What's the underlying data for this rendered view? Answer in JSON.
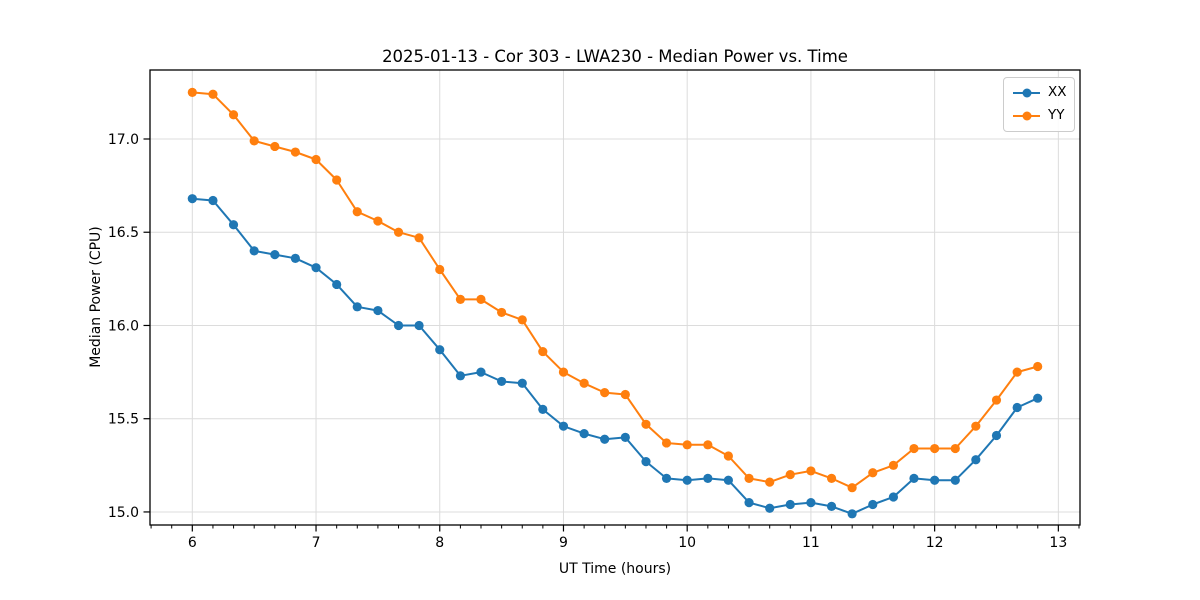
{
  "chart_data": {
    "type": "line",
    "title": "2025-01-13 - Cor 303 - LWA230 - Median Power vs. Time",
    "xlabel": "UT Time (hours)",
    "ylabel": "Median Power (CPU)",
    "xlim": [
      5.658,
      13.175
    ],
    "ylim": [
      14.93,
      17.37
    ],
    "xticks": [
      6,
      7,
      8,
      9,
      10,
      11,
      12,
      13
    ],
    "yticks": [
      15.0,
      15.5,
      16.0,
      16.5,
      17.0
    ],
    "x_minor_step": 0.16667,
    "grid": true,
    "grid_color": "#dcdcdc",
    "legend_position": "upper right",
    "x": [
      6.0,
      6.167,
      6.333,
      6.5,
      6.667,
      6.833,
      7.0,
      7.167,
      7.333,
      7.5,
      7.667,
      7.833,
      8.0,
      8.167,
      8.333,
      8.5,
      8.667,
      8.833,
      9.0,
      9.167,
      9.333,
      9.5,
      9.667,
      9.833,
      10.0,
      10.167,
      10.333,
      10.5,
      10.667,
      10.833,
      11.0,
      11.167,
      11.333,
      11.5,
      11.667,
      11.833,
      12.0,
      12.167,
      12.333,
      12.5,
      12.667,
      12.833
    ],
    "series": [
      {
        "name": "XX",
        "color": "#1f77b4",
        "values": [
          16.68,
          16.67,
          16.54,
          16.4,
          16.38,
          16.36,
          16.31,
          16.22,
          16.1,
          16.08,
          16.0,
          16.0,
          15.87,
          15.73,
          15.75,
          15.7,
          15.69,
          15.55,
          15.46,
          15.42,
          15.39,
          15.4,
          15.27,
          15.18,
          15.17,
          15.18,
          15.17,
          15.05,
          15.02,
          15.04,
          15.05,
          15.03,
          14.99,
          15.04,
          15.08,
          15.18,
          15.17,
          15.17,
          15.28,
          15.41,
          15.56,
          15.61
        ]
      },
      {
        "name": "YY",
        "color": "#ff7f0e",
        "values": [
          17.25,
          17.24,
          17.13,
          16.99,
          16.96,
          16.93,
          16.89,
          16.78,
          16.61,
          16.56,
          16.5,
          16.47,
          16.3,
          16.14,
          16.14,
          16.07,
          16.03,
          15.86,
          15.75,
          15.69,
          15.64,
          15.63,
          15.47,
          15.37,
          15.36,
          15.36,
          15.3,
          15.18,
          15.16,
          15.2,
          15.22,
          15.18,
          15.13,
          15.21,
          15.25,
          15.34,
          15.34,
          15.34,
          15.46,
          15.6,
          15.75,
          15.78
        ]
      }
    ]
  }
}
